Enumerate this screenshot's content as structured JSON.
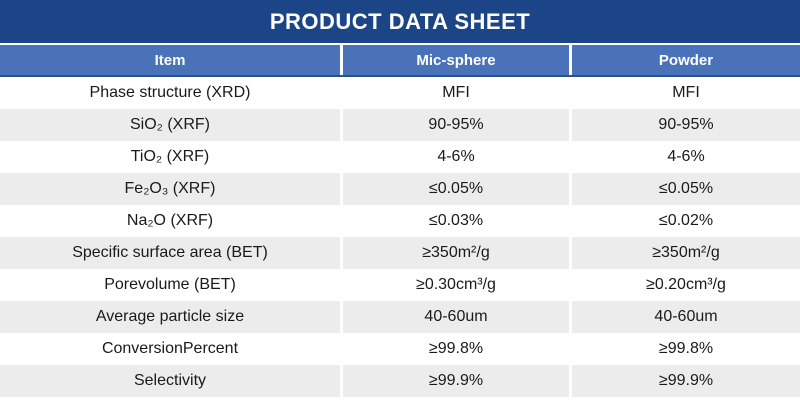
{
  "title": "PRODUCT DATA SHEET",
  "table": {
    "columns": [
      "Item",
      "Mic-sphere",
      "Powder"
    ],
    "rows": [
      [
        "Phase structure (XRD)",
        "MFI",
        "MFI"
      ],
      [
        "SiO₂ (XRF)",
        "90-95%",
        "90-95%"
      ],
      [
        "TiO₂ (XRF)",
        "4-6%",
        "4-6%"
      ],
      [
        "Fe₂O₃ (XRF)",
        "≤0.05%",
        "≤0.05%"
      ],
      [
        "Na₂O (XRF)",
        "≤0.03%",
        "≤0.02%"
      ],
      [
        "Specific surface area (BET)",
        "≥350m²/g",
        "≥350m²/g"
      ],
      [
        "Porevolume (BET)",
        "≥0.30cm³/g",
        "≥0.20cm³/g"
      ],
      [
        "Average particle size",
        "40-60um",
        "40-60um"
      ],
      [
        "ConversionPercent",
        "≥99.8%",
        "≥99.8%"
      ],
      [
        "Selectivity",
        "≥99.9%",
        "≥99.9%"
      ]
    ]
  },
  "colors": {
    "banner_bg": "#1c4587",
    "header_bg": "#4a72b8",
    "header_border": "#2a5094",
    "row_alt_bg": "#ececec",
    "text": "#1a1a1a",
    "banner_text": "#ffffff",
    "header_text": "#ffffff"
  }
}
